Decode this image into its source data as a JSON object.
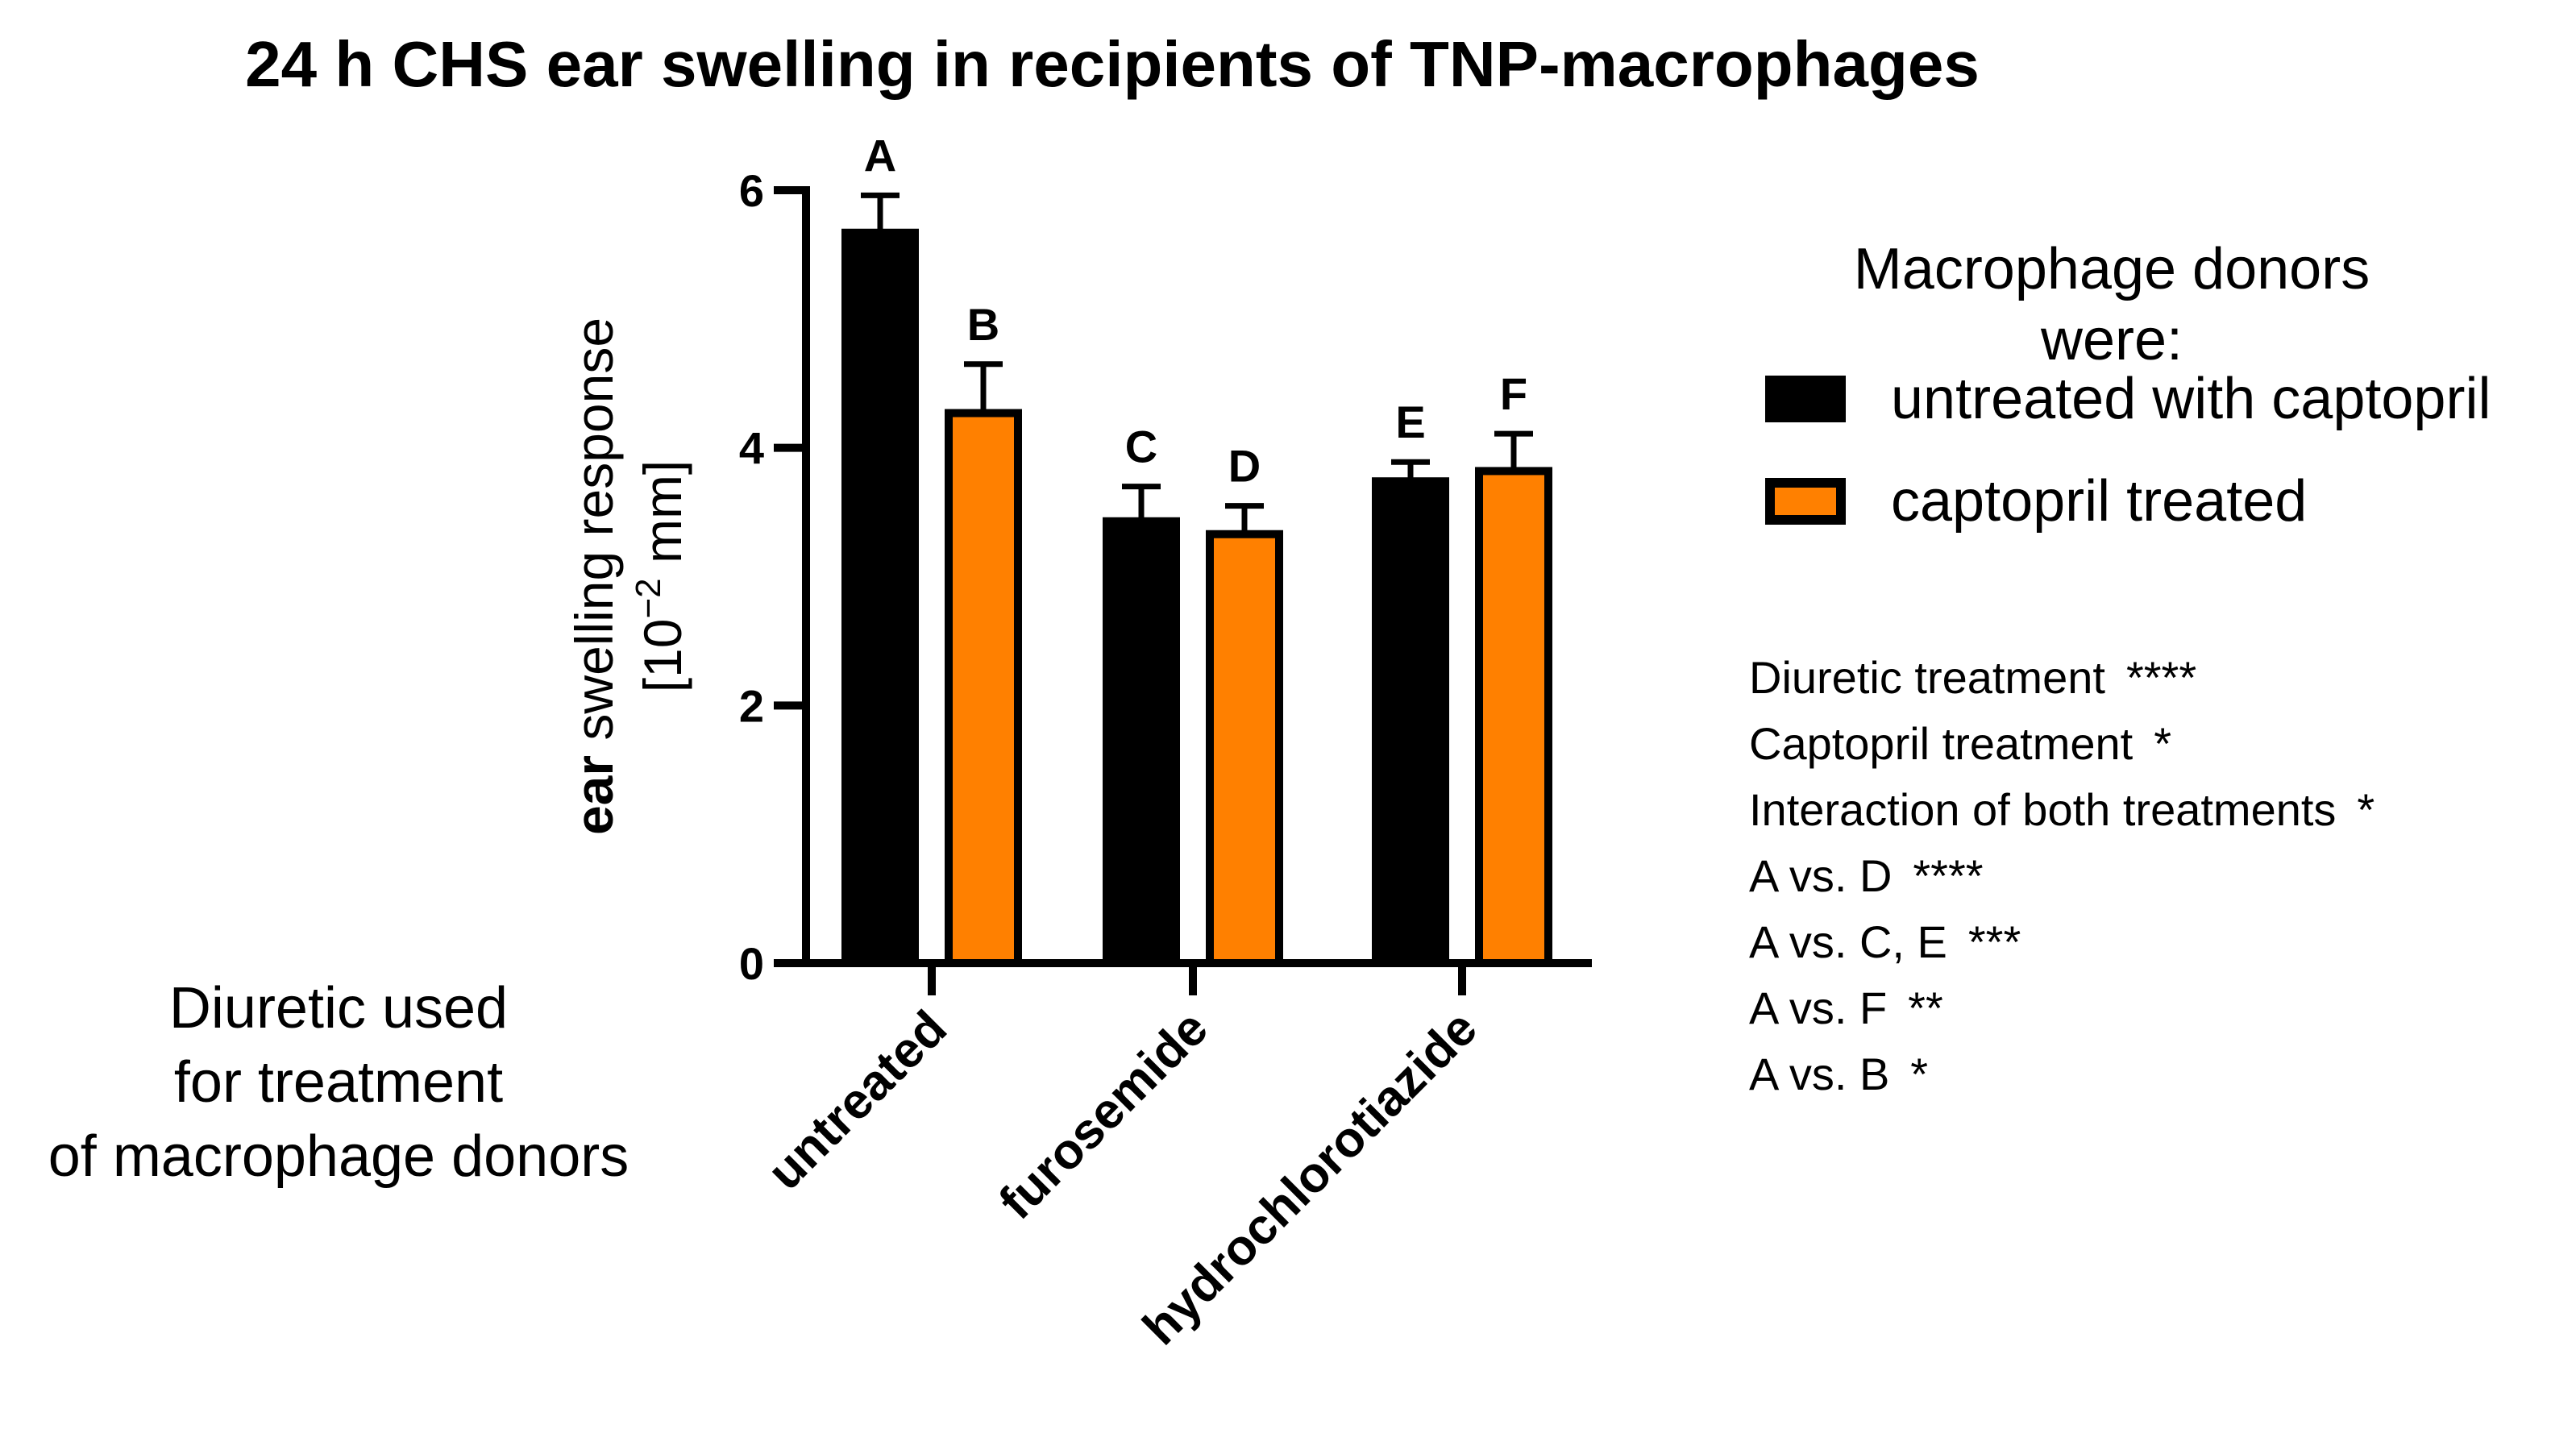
{
  "colors": {
    "untreated_bar": "#000000",
    "captopril_bar": "#ff8000",
    "axis": "#000000"
  },
  "chart_data": {
    "type": "bar",
    "title": "24 h CHS ear swelling in recipients of TNP-macrophages",
    "ylabel_bold": "ear",
    "ylabel_rest": "swelling response",
    "ylabel_unit_open": "[10",
    "ylabel_unit_exp": "−2",
    "ylabel_unit_close": " mm]",
    "xlabel": [
      "Diuretic used",
      "for treatment",
      "of macrophage donors"
    ],
    "ylim": [
      0,
      6
    ],
    "yticks": [
      0,
      2,
      4,
      6
    ],
    "categories": [
      "untreated",
      "furosemide",
      "hydrochlorotiazide"
    ],
    "series": [
      {
        "name": "untreated with captopril",
        "color": "#000000",
        "values": [
          5.67,
          3.43,
          3.74
        ],
        "errors": [
          0.29,
          0.27,
          0.15
        ],
        "letters": [
          "A",
          "C",
          "E"
        ]
      },
      {
        "name": "captopril treated",
        "color": "#ff8000",
        "values": [
          4.27,
          3.33,
          3.82
        ],
        "errors": [
          0.38,
          0.22,
          0.29
        ],
        "letters": [
          "B",
          "D",
          "F"
        ]
      }
    ],
    "legend_title": [
      "Macrophage donors",
      "were:"
    ],
    "annotations": [
      {
        "label": "Diuretic treatment",
        "sig": "****"
      },
      {
        "label": "Captopril treatment",
        "sig": "*"
      },
      {
        "label": "Interaction of both treatments",
        "sig": "*"
      },
      {
        "label": "A vs. D",
        "sig": "****"
      },
      {
        "label": "A vs. C, E",
        "sig": "***"
      },
      {
        "label": "A vs. F",
        "sig": "**"
      },
      {
        "label": "A vs. B",
        "sig": "*"
      }
    ]
  }
}
